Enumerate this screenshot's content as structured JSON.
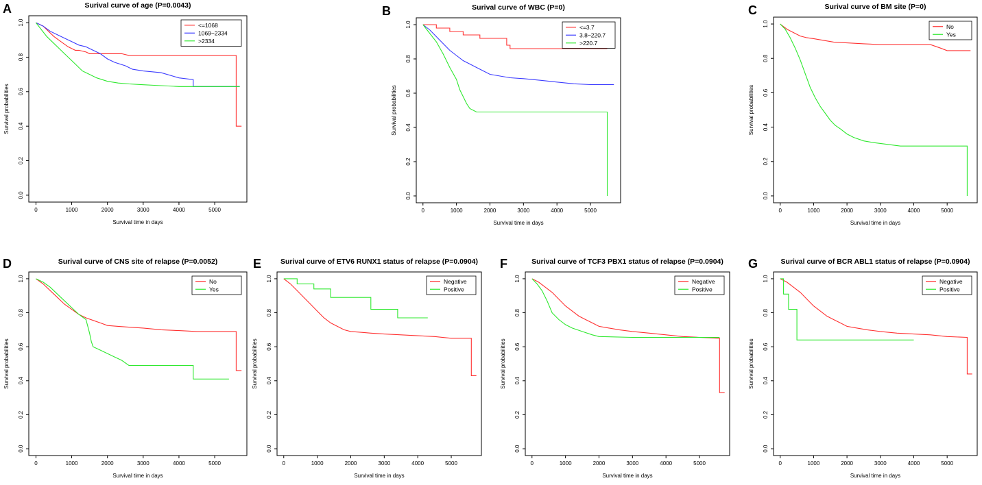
{
  "colors": {
    "red": "#ff3030",
    "blue": "#3b3bff",
    "green": "#2ee82e"
  },
  "chart_data": [
    {
      "type": "line",
      "letter": "A",
      "title": "Surival curve of age (P=0.0043)",
      "xlabel": "Survival time in days",
      "ylabel": "Survival probabilities",
      "xlim": [
        -200,
        5900
      ],
      "ylim": [
        -0.04,
        1.04
      ],
      "xticks": [
        "0",
        "1000",
        "2000",
        "3000",
        "4000",
        "5000"
      ],
      "yticks": [
        "0.0",
        "0.2",
        "0.4",
        "0.6",
        "0.8",
        "1.0"
      ],
      "legend_position": "top-right",
      "series": [
        {
          "name": "<=1068",
          "color": "red",
          "x": [
            0,
            200,
            350,
            500,
            700,
            900,
            1000,
            1100,
            1200,
            1400,
            1500,
            1700,
            2400,
            2600,
            5600,
            5600,
            5750
          ],
          "y": [
            1,
            0.98,
            0.95,
            0.92,
            0.89,
            0.86,
            0.85,
            0.84,
            0.84,
            0.83,
            0.82,
            0.82,
            0.82,
            0.81,
            0.81,
            0.4,
            0.4
          ]
        },
        {
          "name": "1069~2334",
          "color": "blue",
          "x": [
            0,
            200,
            400,
            600,
            800,
            1000,
            1200,
            1400,
            1600,
            1800,
            2000,
            2200,
            2500,
            2700,
            3000,
            3500,
            4000,
            4400,
            4400,
            5700
          ],
          "y": [
            1,
            0.98,
            0.95,
            0.93,
            0.91,
            0.89,
            0.87,
            0.86,
            0.84,
            0.82,
            0.79,
            0.77,
            0.75,
            0.73,
            0.72,
            0.71,
            0.68,
            0.67,
            0.63,
            0.63
          ]
        },
        {
          "name": ">2334",
          "color": "green",
          "x": [
            0,
            150,
            300,
            500,
            700,
            900,
            1100,
            1300,
            1500,
            1700,
            2000,
            2300,
            2600,
            3000,
            3500,
            4000,
            5000,
            5700
          ],
          "y": [
            1,
            0.96,
            0.92,
            0.88,
            0.84,
            0.8,
            0.76,
            0.72,
            0.7,
            0.68,
            0.66,
            0.65,
            0.645,
            0.64,
            0.635,
            0.63,
            0.63,
            0.63
          ]
        }
      ]
    },
    {
      "type": "line",
      "letter": "B",
      "title": "Surival curve of WBC (P=0)",
      "xlabel": "Survival time in days",
      "ylabel": "Survival probabilities",
      "xlim": [
        -200,
        5900
      ],
      "ylim": [
        -0.04,
        1.04
      ],
      "xticks": [
        "0",
        "1000",
        "2000",
        "3000",
        "4000",
        "5000"
      ],
      "yticks": [
        "0.0",
        "0.2",
        "0.4",
        "0.6",
        "0.8",
        "1.0"
      ],
      "legend_position": "top-right",
      "series": [
        {
          "name": "<=3.7",
          "color": "red",
          "x": [
            0,
            400,
            400,
            800,
            800,
            1200,
            1200,
            1700,
            1700,
            2500,
            2500,
            2600,
            2600,
            5500
          ],
          "y": [
            1,
            1,
            0.98,
            0.98,
            0.96,
            0.96,
            0.94,
            0.94,
            0.92,
            0.92,
            0.88,
            0.88,
            0.86,
            0.86
          ]
        },
        {
          "name": "3.8~220.7",
          "color": "blue",
          "x": [
            0,
            200,
            400,
            600,
            800,
            1000,
            1200,
            1400,
            1600,
            1800,
            2000,
            2300,
            2600,
            3000,
            3500,
            4000,
            4500,
            5000,
            5700
          ],
          "y": [
            1,
            0.97,
            0.93,
            0.89,
            0.85,
            0.82,
            0.79,
            0.77,
            0.75,
            0.73,
            0.71,
            0.7,
            0.69,
            0.685,
            0.675,
            0.665,
            0.655,
            0.65,
            0.65
          ]
        },
        {
          "name": ">220.7",
          "color": "green",
          "x": [
            0,
            200,
            400,
            600,
            800,
            1000,
            1100,
            1200,
            1300,
            1400,
            1600,
            1800,
            2000,
            5500,
            5500
          ],
          "y": [
            1,
            0.95,
            0.9,
            0.83,
            0.75,
            0.68,
            0.62,
            0.58,
            0.54,
            0.51,
            0.49,
            0.49,
            0.49,
            0.49,
            0.0
          ]
        }
      ]
    },
    {
      "type": "line",
      "letter": "C",
      "title": "Surival curve of BM site (P=0)",
      "xlabel": "Survival time in days",
      "ylabel": "Survival probabilities",
      "xlim": [
        -200,
        5900
      ],
      "ylim": [
        -0.04,
        1.04
      ],
      "xticks": [
        "0",
        "1000",
        "2000",
        "3000",
        "4000",
        "5000"
      ],
      "yticks": [
        "0.0",
        "0.2",
        "0.4",
        "0.6",
        "0.8",
        "1.0"
      ],
      "legend_position": "top-right",
      "series": [
        {
          "name": "No",
          "color": "red",
          "x": [
            0,
            200,
            400,
            600,
            800,
            1000,
            1300,
            1600,
            2000,
            2500,
            3000,
            3500,
            4000,
            4500,
            4800,
            5000,
            5700
          ],
          "y": [
            1,
            0.97,
            0.95,
            0.93,
            0.92,
            0.915,
            0.905,
            0.895,
            0.89,
            0.885,
            0.88,
            0.88,
            0.88,
            0.88,
            0.86,
            0.845,
            0.845
          ]
        },
        {
          "name": "Yes",
          "color": "green",
          "x": [
            0,
            150,
            300,
            450,
            600,
            750,
            900,
            1050,
            1200,
            1350,
            1500,
            1650,
            1800,
            2000,
            2200,
            2500,
            2800,
            3200,
            3600,
            4000,
            5000,
            5600,
            5600
          ],
          "y": [
            1,
            0.97,
            0.92,
            0.86,
            0.79,
            0.71,
            0.63,
            0.57,
            0.52,
            0.48,
            0.44,
            0.41,
            0.39,
            0.36,
            0.34,
            0.32,
            0.31,
            0.3,
            0.29,
            0.29,
            0.29,
            0.29,
            0.0
          ]
        }
      ]
    },
    {
      "type": "line",
      "letter": "D",
      "title": "Surival curve of CNS site of relapse (P=0.0052)",
      "xlabel": "Survival time in days",
      "ylabel": "Survival probabilities",
      "xlim": [
        -200,
        5900
      ],
      "ylim": [
        -0.04,
        1.04
      ],
      "xticks": [
        "0",
        "1000",
        "2000",
        "3000",
        "4000",
        "5000"
      ],
      "yticks": [
        "0.0",
        "0.2",
        "0.4",
        "0.6",
        "0.8",
        "1.0"
      ],
      "legend_position": "top-right",
      "series": [
        {
          "name": "No",
          "color": "red",
          "x": [
            0,
            200,
            400,
            600,
            800,
            1000,
            1200,
            1400,
            1600,
            1800,
            2000,
            2300,
            2600,
            3000,
            3500,
            4000,
            4500,
            5000,
            5600,
            5600,
            5750
          ],
          "y": [
            1,
            0.97,
            0.93,
            0.89,
            0.85,
            0.82,
            0.79,
            0.77,
            0.755,
            0.74,
            0.725,
            0.72,
            0.715,
            0.71,
            0.7,
            0.695,
            0.69,
            0.69,
            0.69,
            0.46,
            0.46
          ]
        },
        {
          "name": "Yes",
          "color": "green",
          "x": [
            0,
            200,
            400,
            600,
            800,
            1000,
            1200,
            1400,
            1500,
            1550,
            1600,
            1800,
            2000,
            2200,
            2400,
            2600,
            3000,
            3500,
            4400,
            4400,
            5400
          ],
          "y": [
            1,
            0.98,
            0.95,
            0.91,
            0.87,
            0.83,
            0.79,
            0.76,
            0.68,
            0.63,
            0.6,
            0.58,
            0.56,
            0.54,
            0.52,
            0.49,
            0.49,
            0.49,
            0.49,
            0.41,
            0.41
          ]
        }
      ]
    },
    {
      "type": "line",
      "letter": "E",
      "title": "Surival curve of ETV6 RUNX1 status of relapse (P=0.0904)",
      "xlabel": "Survival time in days",
      "ylabel": "Survival probabilities",
      "xlim": [
        -200,
        5900
      ],
      "ylim": [
        -0.04,
        1.04
      ],
      "xticks": [
        "0",
        "1000",
        "2000",
        "3000",
        "4000",
        "5000"
      ],
      "yticks": [
        "0.0",
        "0.2",
        "0.4",
        "0.6",
        "0.8",
        "1.0"
      ],
      "legend_position": "top-right",
      "series": [
        {
          "name": "Negative",
          "color": "red",
          "x": [
            0,
            200,
            400,
            600,
            800,
            1000,
            1200,
            1400,
            1600,
            1800,
            2000,
            2300,
            2600,
            3000,
            3500,
            4000,
            4500,
            5000,
            5600,
            5600,
            5750
          ],
          "y": [
            1,
            0.97,
            0.93,
            0.89,
            0.85,
            0.81,
            0.77,
            0.74,
            0.72,
            0.7,
            0.69,
            0.685,
            0.68,
            0.675,
            0.67,
            0.665,
            0.66,
            0.65,
            0.65,
            0.43,
            0.43
          ]
        },
        {
          "name": "Positive",
          "color": "green",
          "x": [
            0,
            400,
            400,
            900,
            900,
            1400,
            1400,
            2600,
            2600,
            3400,
            3400,
            4300
          ],
          "y": [
            1,
            1,
            0.97,
            0.97,
            0.94,
            0.94,
            0.89,
            0.89,
            0.82,
            0.82,
            0.77,
            0.77
          ]
        }
      ]
    },
    {
      "type": "line",
      "letter": "F",
      "title": "Surival curve of TCF3 PBX1 status of relapse (P=0.0904)",
      "xlabel": "Survival time in days",
      "ylabel": "Survival probabilities",
      "xlim": [
        -200,
        5900
      ],
      "ylim": [
        -0.04,
        1.04
      ],
      "xticks": [
        "0",
        "1000",
        "2000",
        "3000",
        "4000",
        "5000"
      ],
      "yticks": [
        "0.0",
        "0.2",
        "0.4",
        "0.6",
        "0.8",
        "1.0"
      ],
      "legend_position": "top-right",
      "series": [
        {
          "name": "Negative",
          "color": "red",
          "x": [
            0,
            200,
            400,
            600,
            800,
            1000,
            1200,
            1400,
            1600,
            1800,
            2000,
            2300,
            2600,
            3000,
            3500,
            4000,
            4500,
            5000,
            5600,
            5600,
            5750
          ],
          "y": [
            1,
            0.98,
            0.95,
            0.92,
            0.88,
            0.84,
            0.81,
            0.78,
            0.76,
            0.74,
            0.72,
            0.71,
            0.7,
            0.69,
            0.68,
            0.67,
            0.66,
            0.655,
            0.65,
            0.33,
            0.33
          ]
        },
        {
          "name": "Positive",
          "color": "green",
          "x": [
            0,
            150,
            300,
            450,
            600,
            800,
            1000,
            1200,
            1500,
            1800,
            2000,
            3000,
            4000,
            5000,
            5600
          ],
          "y": [
            1,
            0.97,
            0.93,
            0.87,
            0.8,
            0.76,
            0.73,
            0.71,
            0.69,
            0.67,
            0.66,
            0.655,
            0.655,
            0.655,
            0.655
          ]
        }
      ]
    },
    {
      "type": "line",
      "letter": "G",
      "title": "Surival curve of BCR ABL1 status of relapse (P=0.0904)",
      "xlabel": "Survival time in days",
      "ylabel": "Survival probabilities",
      "xlim": [
        -200,
        5900
      ],
      "ylim": [
        -0.04,
        1.04
      ],
      "xticks": [
        "0",
        "1000",
        "2000",
        "3000",
        "4000",
        "5000"
      ],
      "yticks": [
        "0.0",
        "0.2",
        "0.4",
        "0.6",
        "0.8",
        "1.0"
      ],
      "legend_position": "top-right",
      "series": [
        {
          "name": "Negative",
          "color": "red",
          "x": [
            0,
            200,
            400,
            600,
            800,
            1000,
            1200,
            1400,
            1600,
            1800,
            2000,
            2300,
            2600,
            3000,
            3500,
            4000,
            4500,
            5000,
            5600,
            5600,
            5750
          ],
          "y": [
            1,
            0.98,
            0.95,
            0.92,
            0.88,
            0.84,
            0.81,
            0.78,
            0.76,
            0.74,
            0.72,
            0.71,
            0.7,
            0.69,
            0.68,
            0.675,
            0.67,
            0.66,
            0.655,
            0.44,
            0.44
          ]
        },
        {
          "name": "Positive",
          "color": "green",
          "x": [
            0,
            100,
            100,
            250,
            250,
            500,
            500,
            4000
          ],
          "y": [
            1,
            1,
            0.91,
            0.91,
            0.82,
            0.82,
            0.64,
            0.64
          ]
        }
      ]
    }
  ]
}
